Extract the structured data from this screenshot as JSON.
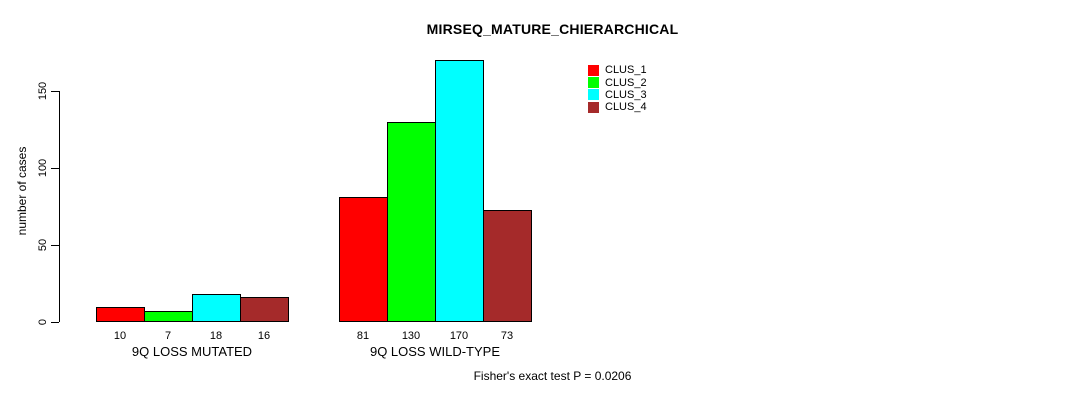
{
  "figure": {
    "title": "MIRSEQ_MATURE_CHIERARCHICAL",
    "footer": "Fisher's exact test P = 0.0206"
  },
  "chart_data": {
    "type": "bar",
    "title": "MIRSEQ_MATURE_CHIERARCHICAL",
    "xlabel": "",
    "ylabel": "number of cases",
    "categories": [
      "9Q LOSS MUTATED",
      "9Q LOSS WILD-TYPE"
    ],
    "series": [
      {
        "name": "CLUS_1",
        "color": "#ff0000",
        "values": [
          10,
          81
        ]
      },
      {
        "name": "CLUS_2",
        "color": "#00ff00",
        "values": [
          7,
          130
        ]
      },
      {
        "name": "CLUS_3",
        "color": "#00ffff",
        "values": [
          18,
          170
        ]
      },
      {
        "name": "CLUS_4",
        "color": "#a52a2a",
        "values": [
          16,
          73
        ]
      }
    ],
    "yticks": [
      0,
      50,
      100,
      150
    ],
    "ylim": [
      0,
      175
    ],
    "grid": false,
    "bar_value_labels": true,
    "legend_position": "top-right",
    "annotation": "Fisher's exact test P = 0.0206"
  }
}
